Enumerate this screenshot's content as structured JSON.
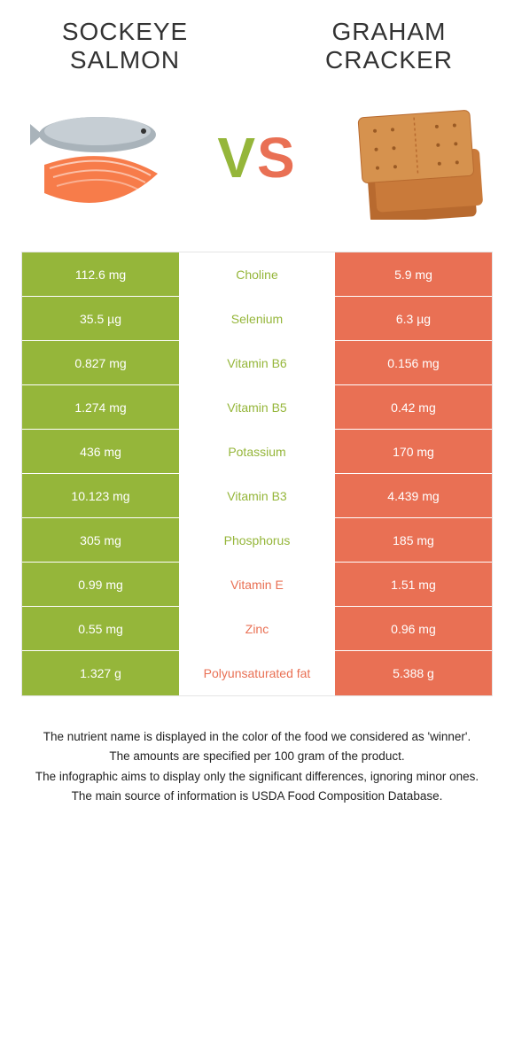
{
  "food_a": {
    "title": "SOCKEYE SALMON",
    "color": "#95b63a"
  },
  "food_b": {
    "title": "GRAHAM CRACKER",
    "color": "#e97054"
  },
  "vs_label": "VS",
  "rows": [
    {
      "left": "112.6 mg",
      "nutrient": "Choline",
      "right": "5.9 mg",
      "winner": "a"
    },
    {
      "left": "35.5 µg",
      "nutrient": "Selenium",
      "right": "6.3 µg",
      "winner": "a"
    },
    {
      "left": "0.827 mg",
      "nutrient": "Vitamin B6",
      "right": "0.156 mg",
      "winner": "a"
    },
    {
      "left": "1.274 mg",
      "nutrient": "Vitamin B5",
      "right": "0.42 mg",
      "winner": "a"
    },
    {
      "left": "436 mg",
      "nutrient": "Potassium",
      "right": "170 mg",
      "winner": "a"
    },
    {
      "left": "10.123 mg",
      "nutrient": "Vitamin B3",
      "right": "4.439 mg",
      "winner": "a"
    },
    {
      "left": "305 mg",
      "nutrient": "Phosphorus",
      "right": "185 mg",
      "winner": "a"
    },
    {
      "left": "0.99 mg",
      "nutrient": "Vitamin E",
      "right": "1.51 mg",
      "winner": "b"
    },
    {
      "left": "0.55 mg",
      "nutrient": "Zinc",
      "right": "0.96 mg",
      "winner": "b"
    },
    {
      "left": "1.327 g",
      "nutrient": "Polyunsaturated fat",
      "right": "5.388 g",
      "winner": "b"
    }
  ],
  "footnotes": [
    "The nutrient name is displayed in the color of the food we considered as 'winner'.",
    "The amounts are specified per 100 gram of the product.",
    "The infographic aims to display only the significant differences, ignoring minor ones.",
    "The main source of information is USDA Food Composition Database."
  ],
  "icons": {
    "salmon": "salmon-icon",
    "cracker": "cracker-icon"
  }
}
